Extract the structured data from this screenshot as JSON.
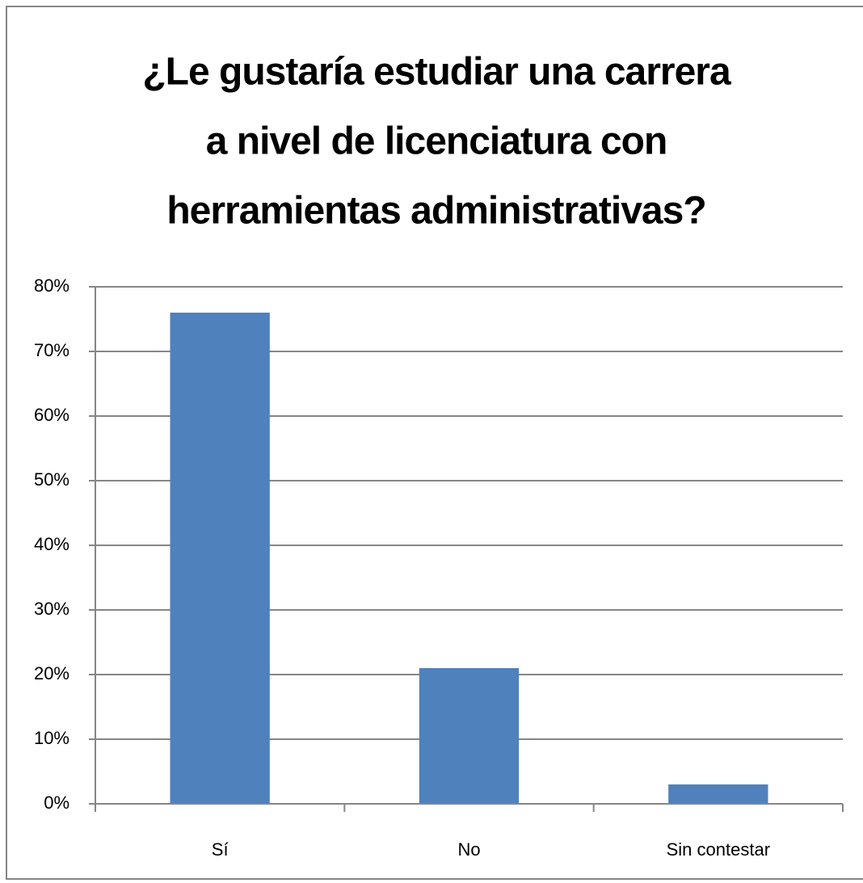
{
  "chart_data": {
    "type": "bar",
    "title": [
      "¿Le gustaría estudiar una carrera",
      "a nivel de licenciatura con",
      "herramientas administrativas?"
    ],
    "categories": [
      "Sí",
      "No",
      "Sin contestar"
    ],
    "values": [
      76,
      21,
      3
    ],
    "color": "#4f81bd",
    "ylim": [
      0,
      80
    ],
    "yticks": [
      {
        "value": 0,
        "label": "0%"
      },
      {
        "value": 10,
        "label": "10%"
      },
      {
        "value": 20,
        "label": "20%"
      },
      {
        "value": 30,
        "label": "30%"
      },
      {
        "value": 40,
        "label": "40%"
      },
      {
        "value": 50,
        "label": "50%"
      },
      {
        "value": 60,
        "label": "60%"
      },
      {
        "value": 70,
        "label": "70%"
      },
      {
        "value": 80,
        "label": "80%"
      }
    ],
    "grid": true
  }
}
